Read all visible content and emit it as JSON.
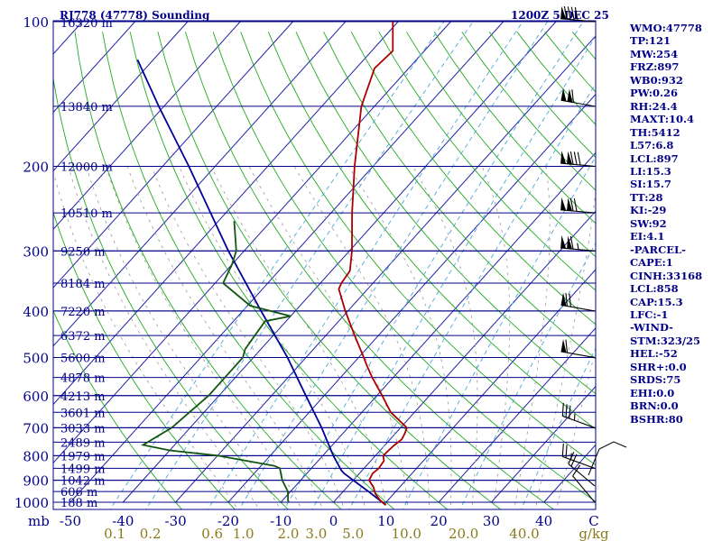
{
  "header": {
    "left_title": "RJ778 (47778) Sounding",
    "right_title": "1200Z  5 DEC 25"
  },
  "indices": [
    "WMO:47778",
    "TP:121",
    "MW:254",
    "FRZ:897",
    "WB0:932",
    "PW:0.26",
    "RH:24.4",
    "MAXT:10.4",
    "TH:5412",
    "L57:6.8",
    "LCL:897",
    "LI:15.3",
    "SI:15.7",
    "TT:28",
    "KI:-29",
    "SW:92",
    "EI:4.1",
    "-PARCEL-",
    "CAPE:1",
    "CINH:33168",
    "LCL:858",
    "CAP:15.3",
    "LFC:-1",
    "-WIND-",
    "STM:323/25",
    "HEL:-52",
    "SHR+:0.0",
    "SRDS:75",
    "EHI:0.0",
    "BRN:0.0",
    "BSHR:80"
  ],
  "colors": {
    "isobar": "#000088",
    "isotherm": "#2222aa",
    "dry_adiabat": "#22aa22",
    "moist_adiabat": "#999999",
    "mixing_ratio": "#4aa8d8",
    "temperature": "#aa0000",
    "dewpoint": "#115511",
    "parcel": "#000099",
    "mixing_ratio_label": "#8a7a1a",
    "border": "#000088"
  },
  "chart_data": {
    "type": "skew-t log-p sounding",
    "x_unit_label": "C",
    "y_unit_label": "mb",
    "mixing_ratio_unit_label": "g/kg",
    "pressure_levels_mb": [
      100,
      200,
      300,
      400,
      500,
      600,
      700,
      800,
      900,
      1000
    ],
    "height_labels": [
      {
        "p": 150,
        "label": "13840 m"
      },
      {
        "p": 200,
        "label": "12000 m"
      },
      {
        "p": 250,
        "label": "10510 m"
      },
      {
        "p": 300,
        "label": "9250 m"
      },
      {
        "p": 350,
        "label": "8184 m"
      },
      {
        "p": 400,
        "label": "7220 m"
      },
      {
        "p": 450,
        "label": "6372 m"
      },
      {
        "p": 500,
        "label": "5600 m"
      },
      {
        "p": 550,
        "label": "4878 m"
      },
      {
        "p": 600,
        "label": "4213 m"
      },
      {
        "p": 650,
        "label": "3601 m"
      },
      {
        "p": 700,
        "label": "3033 m"
      },
      {
        "p": 750,
        "label": "2489 m"
      },
      {
        "p": 800,
        "label": "1979 m"
      },
      {
        "p": 850,
        "label": "1499 m"
      },
      {
        "p": 900,
        "label": "1042 m"
      },
      {
        "p": 950,
        "label": "606 m"
      },
      {
        "p": 1000,
        "label": "188 m"
      }
    ],
    "top_height_label": "16320 m",
    "x_ticks_c": [
      -50,
      -40,
      -30,
      -20,
      -10,
      0,
      10,
      20,
      30,
      40
    ],
    "mixing_ratio_ticks": [
      "0.1",
      "0.2",
      "0.6",
      "1.0",
      "2.0",
      "3.0",
      "5.0",
      "10.0",
      "20.0",
      "40.0"
    ],
    "temperature": [
      {
        "p": 1013,
        "t": 10.4
      },
      {
        "p": 990,
        "t": 8.5
      },
      {
        "p": 960,
        "t": 6.5
      },
      {
        "p": 930,
        "t": 5.0
      },
      {
        "p": 900,
        "t": 3.0
      },
      {
        "p": 870,
        "t": 2.5
      },
      {
        "p": 850,
        "t": 2.8
      },
      {
        "p": 820,
        "t": 2.5
      },
      {
        "p": 800,
        "t": 1.5
      },
      {
        "p": 780,
        "t": 1.6
      },
      {
        "p": 760,
        "t": 1.8
      },
      {
        "p": 740,
        "t": 2.2
      },
      {
        "p": 720,
        "t": 1.8
      },
      {
        "p": 700,
        "t": 1.2
      },
      {
        "p": 650,
        "t": -4.5
      },
      {
        "p": 600,
        "t": -9.0
      },
      {
        "p": 550,
        "t": -14.0
      },
      {
        "p": 520,
        "t": -17.0
      },
      {
        "p": 500,
        "t": -19.0
      },
      {
        "p": 450,
        "t": -24.5
      },
      {
        "p": 400,
        "t": -30.5
      },
      {
        "p": 360,
        "t": -35.5
      },
      {
        "p": 350,
        "t": -36.0
      },
      {
        "p": 330,
        "t": -36.5
      },
      {
        "p": 300,
        "t": -39.5
      },
      {
        "p": 250,
        "t": -46.0
      },
      {
        "p": 200,
        "t": -53.5
      },
      {
        "p": 150,
        "t": -62.5
      },
      {
        "p": 125,
        "t": -66.5
      },
      {
        "p": 115,
        "t": -66.0
      },
      {
        "p": 100,
        "t": -71.0
      }
    ],
    "dewpoint": [
      {
        "p": 1000,
        "t": -8.5
      },
      {
        "p": 990,
        "t": -9.0
      },
      {
        "p": 950,
        "t": -10.5
      },
      {
        "p": 900,
        "t": -13.5
      },
      {
        "p": 850,
        "t": -16.0
      },
      {
        "p": 840,
        "t": -17.5
      },
      {
        "p": 800,
        "t": -30.0
      },
      {
        "p": 780,
        "t": -40.0
      },
      {
        "p": 760,
        "t": -46.0
      },
      {
        "p": 700,
        "t": -43.5
      },
      {
        "p": 600,
        "t": -42.0
      },
      {
        "p": 500,
        "t": -42.0
      },
      {
        "p": 480,
        "t": -43.0
      },
      {
        "p": 420,
        "t": -44.0
      },
      {
        "p": 410,
        "t": -40.0
      },
      {
        "p": 390,
        "t": -49.5
      },
      {
        "p": 350,
        "t": -58.5
      },
      {
        "p": 320,
        "t": -60.0
      },
      {
        "p": 300,
        "t": -61.5
      },
      {
        "p": 260,
        "t": -67.0
      }
    ],
    "parcel": [
      {
        "p": 1013,
        "t": 10.4
      },
      {
        "p": 950,
        "t": 4.8
      },
      {
        "p": 900,
        "t": 0.0
      },
      {
        "p": 870,
        "t": -3.0
      },
      {
        "p": 858,
        "t": -4.0
      },
      {
        "p": 800,
        "t": -8.0
      },
      {
        "p": 700,
        "t": -15.0
      },
      {
        "p": 600,
        "t": -23.5
      },
      {
        "p": 500,
        "t": -33.5
      },
      {
        "p": 400,
        "t": -46.5
      },
      {
        "p": 300,
        "t": -63.0
      },
      {
        "p": 200,
        "t": -85.0
      },
      {
        "p": 150,
        "t": -101.0
      },
      {
        "p": 120,
        "t": -113.0
      }
    ],
    "wind_barbs": [
      {
        "p": 1000,
        "dir": 320,
        "spd": 10
      },
      {
        "p": 925,
        "dir": 310,
        "spd": 20
      },
      {
        "p": 850,
        "dir": 290,
        "spd": 25
      },
      {
        "p": 700,
        "dir": 290,
        "spd": 35
      },
      {
        "p": 500,
        "dir": 280,
        "spd": 60
      },
      {
        "p": 400,
        "dir": 280,
        "spd": 70
      },
      {
        "p": 300,
        "dir": 275,
        "spd": 115
      },
      {
        "p": 250,
        "dir": 275,
        "spd": 120
      },
      {
        "p": 200,
        "dir": 275,
        "spd": 130
      },
      {
        "p": 150,
        "dir": 280,
        "spd": 110
      },
      {
        "p": 100,
        "dir": 275,
        "spd": 90
      }
    ]
  }
}
